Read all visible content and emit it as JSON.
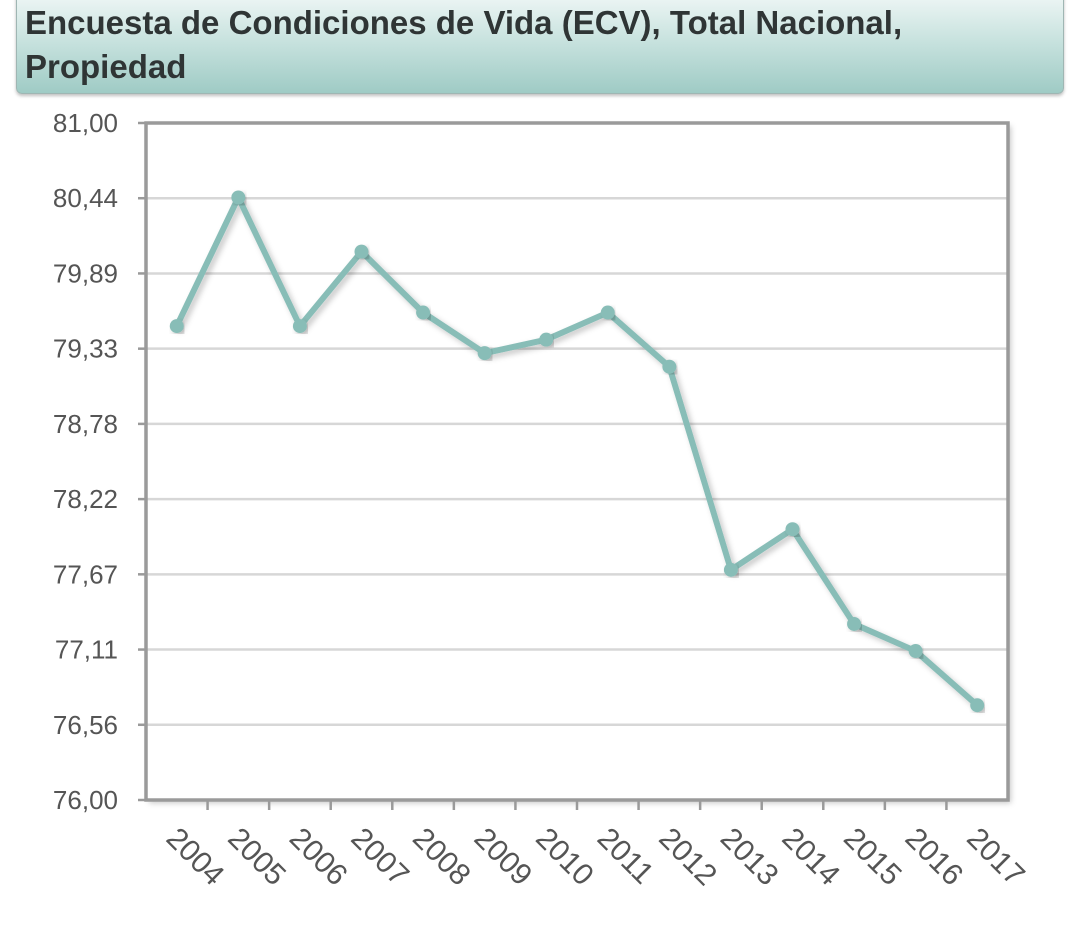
{
  "chart_data": {
    "type": "line",
    "title": "Encuesta de Condiciones de Vida (ECV), Total Nacional, Propiedad",
    "xlabel": "",
    "ylabel": "",
    "categories": [
      "2004",
      "2005",
      "2006",
      "2007",
      "2008",
      "2009",
      "2010",
      "2011",
      "2012",
      "2013",
      "2014",
      "2015",
      "2016",
      "2017"
    ],
    "series": [
      {
        "values": [
          79.5,
          80.45,
          79.5,
          80.05,
          79.6,
          79.3,
          79.4,
          79.6,
          79.2,
          77.7,
          78.0,
          77.3,
          77.1,
          76.7
        ]
      }
    ],
    "ylim": [
      76.0,
      81.0
    ],
    "yticks": [
      "81,00",
      "80,44",
      "79,89",
      "79,33",
      "78,78",
      "78,22",
      "77,67",
      "77,11",
      "76,56",
      "76,00"
    ],
    "colors": {
      "line": "#88bdb7",
      "grid": "#d7d7d7",
      "axis": "#9a9a9a"
    },
    "grid": true,
    "legend": "none"
  }
}
